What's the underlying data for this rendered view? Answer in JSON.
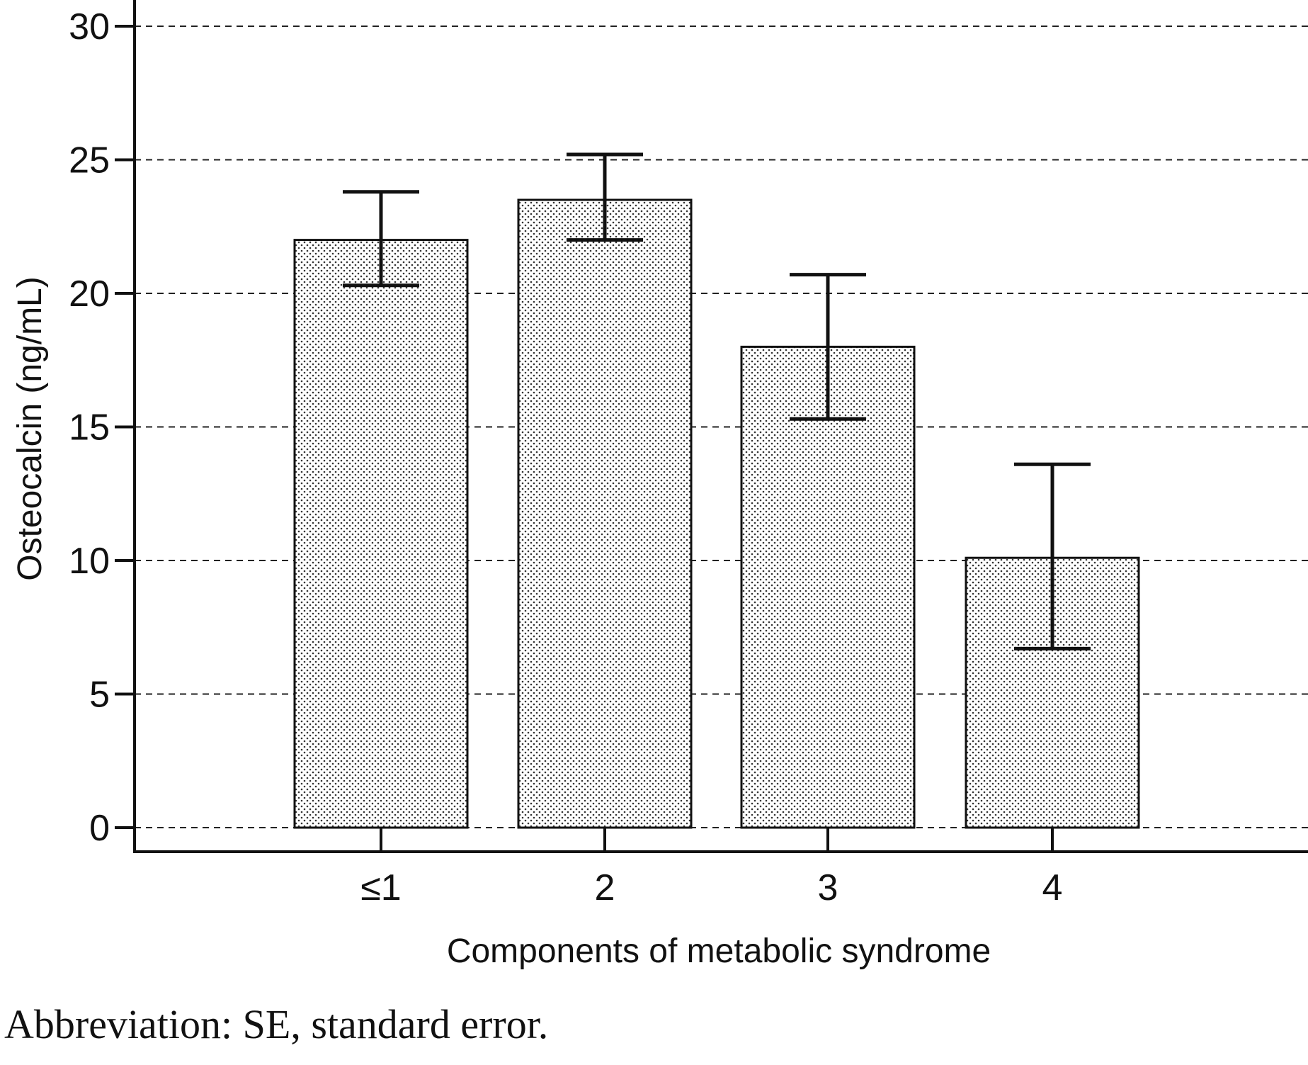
{
  "chart_data": {
    "type": "bar",
    "title": "",
    "xlabel": "Components of metabolic syndrome",
    "ylabel": "Osteocalcin (ng/mL)",
    "categories": [
      "≤1",
      "2",
      "3",
      "4"
    ],
    "values": [
      22.0,
      23.5,
      18.0,
      10.1
    ],
    "error_bars": [
      {
        "low": 20.3,
        "high": 23.8
      },
      {
        "low": 22.0,
        "high": 25.2
      },
      {
        "low": 15.3,
        "high": 20.7
      },
      {
        "low": 6.7,
        "high": 13.6
      }
    ],
    "ylim": [
      0,
      30
    ],
    "yticks": [
      0,
      5,
      10,
      15,
      20,
      25,
      30
    ],
    "grid": true,
    "legend": "none"
  },
  "footnote": "Abbreviation: SE, standard error."
}
